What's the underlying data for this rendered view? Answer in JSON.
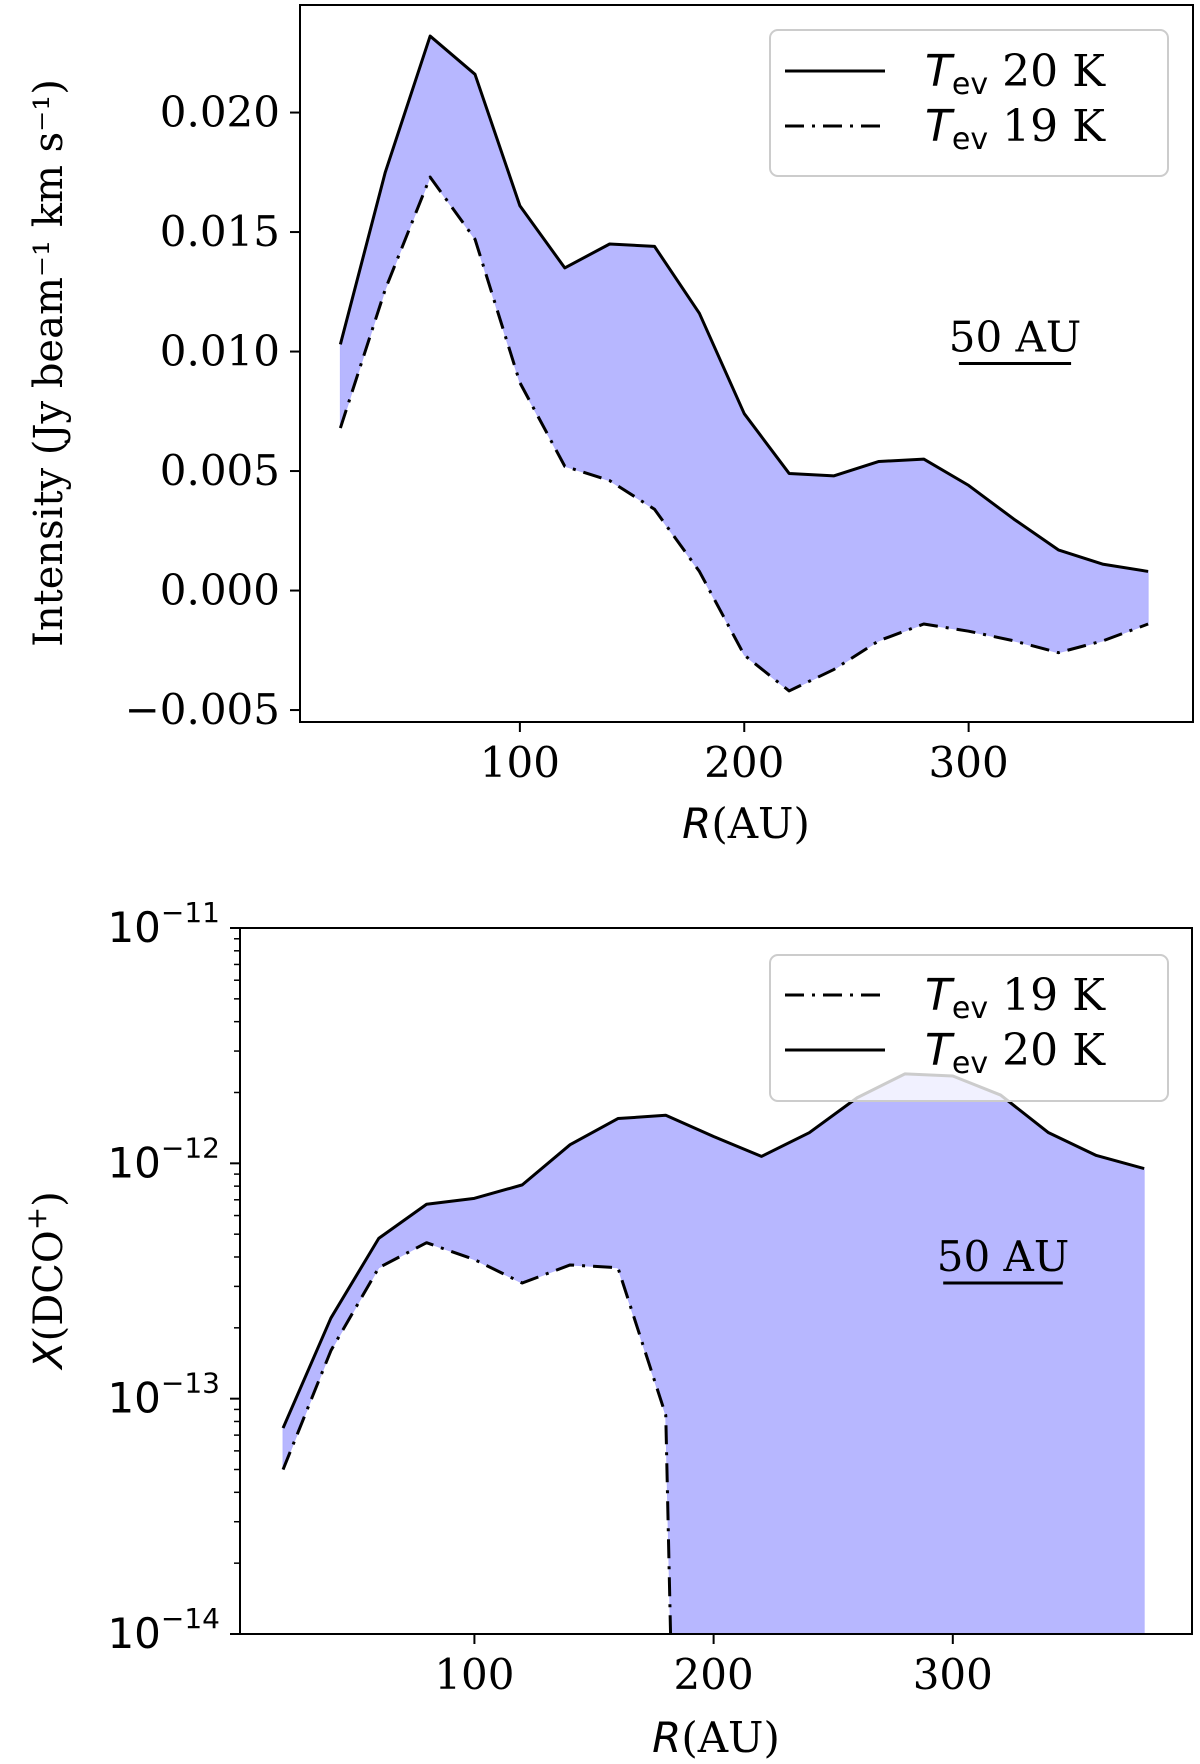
{
  "chart_data": [
    {
      "type": "area",
      "xlabel_italic": "R",
      "xlabel_rest": "(AU)",
      "ylabel": "Intensity (Jy beam⁻¹ km s⁻¹)",
      "xlim": [
        2,
        400
      ],
      "ylim": [
        -0.0055,
        0.0245
      ],
      "xticks": [
        100,
        200,
        300
      ],
      "xtick_labels": [
        "100",
        "200",
        "300"
      ],
      "yticks": [
        -0.005,
        0.0,
        0.005,
        0.01,
        0.015,
        0.02
      ],
      "ytick_labels": [
        "−0.005",
        "0.000",
        "0.005",
        "0.010",
        "0.015",
        "0.020"
      ],
      "fill_color": "#b3b3ff",
      "legend_position": "top-right",
      "scale_bar_label": "50 AU",
      "scale_bar_length": 50,
      "x": [
        20,
        40,
        60,
        80,
        100,
        120,
        140,
        160,
        180,
        200,
        220,
        240,
        260,
        280,
        300,
        320,
        340,
        360,
        380
      ],
      "series": [
        {
          "name_sym": "T",
          "name_sub": "ev",
          "name_rest": " 20 K",
          "style": "solid",
          "values": [
            0.0103,
            0.0175,
            0.0232,
            0.0216,
            0.0161,
            0.0135,
            0.0145,
            0.0144,
            0.0116,
            0.0074,
            0.0049,
            0.0048,
            0.0054,
            0.0055,
            0.0044,
            0.003,
            0.0017,
            0.0011,
            0.0008
          ]
        },
        {
          "name_sym": "T",
          "name_sub": "ev",
          "name_rest": " 19 K",
          "style": "dashdot",
          "values": [
            0.0068,
            0.0126,
            0.0173,
            0.0147,
            0.0087,
            0.0052,
            0.0046,
            0.0034,
            0.0008,
            -0.0027,
            -0.0042,
            -0.0033,
            -0.0021,
            -0.0014,
            -0.0017,
            -0.0021,
            -0.0026,
            -0.0021,
            -0.0014
          ]
        }
      ]
    },
    {
      "type": "area",
      "xlabel_italic": "R",
      "xlabel_rest": "(AU)",
      "ylabel_italic": "X",
      "ylabel_rest": "(DCO",
      "ylabel_sup": "+",
      "ylabel_close": ")",
      "yscale": "log",
      "xlim": [
        2,
        400
      ],
      "ylim": [
        1e-14,
        1e-11
      ],
      "xticks": [
        100,
        200,
        300
      ],
      "xtick_labels": [
        "100",
        "200",
        "300"
      ],
      "yticks_exp": [
        -14,
        -13,
        -12,
        -11
      ],
      "ytick_base": "10",
      "ytick_exponents": [
        "−14",
        "−13",
        "−12",
        "−11"
      ],
      "fill_color": "#b3b3ff",
      "legend_position": "top-right",
      "scale_bar_label": "50 AU",
      "scale_bar_length": 50,
      "x": [
        20,
        40,
        60,
        80,
        100,
        120,
        140,
        160,
        180,
        200,
        220,
        240,
        260,
        280,
        300,
        320,
        340,
        360,
        380
      ],
      "series": [
        {
          "name_sym": "T",
          "name_sub": "ev",
          "name_rest": " 19 K",
          "style": "dashdot",
          "x": [
            20,
            40,
            60,
            80,
            100,
            120,
            140,
            160,
            180,
            182
          ],
          "values": [
            5e-14,
            1.6e-13,
            3.6e-13,
            4.6e-13,
            3.9e-13,
            3.1e-13,
            3.7e-13,
            3.6e-13,
            8.5e-14,
            1e-14
          ]
        },
        {
          "name_sym": "T",
          "name_sub": "ev",
          "name_rest": " 20 K",
          "style": "solid",
          "values": [
            7.5e-14,
            2.2e-13,
            4.8e-13,
            6.7e-13,
            7.1e-13,
            8.1e-13,
            1.2e-12,
            1.55e-12,
            1.6e-12,
            1.3e-12,
            1.07e-12,
            1.35e-12,
            1.9e-12,
            2.4e-12,
            2.35e-12,
            1.95e-12,
            1.35e-12,
            1.08e-12,
            9.5e-13
          ]
        }
      ]
    }
  ]
}
